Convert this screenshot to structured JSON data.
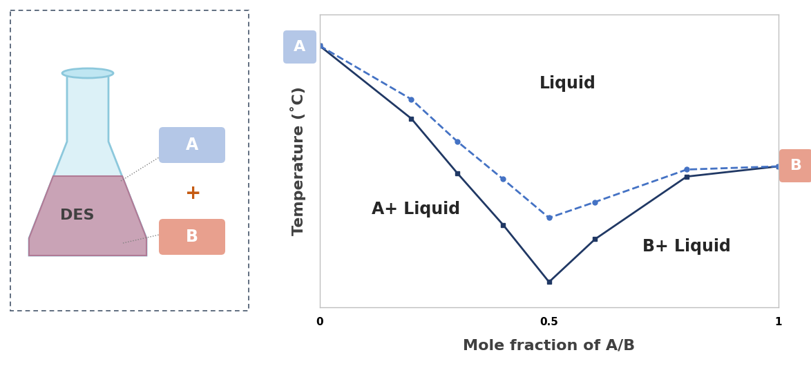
{
  "chart_data": {
    "type": "line",
    "x_label": "Mole fraction of A/B",
    "y_label": "Temperature (˚C)",
    "x": [
      0,
      0.2,
      0.3,
      0.4,
      0.5,
      0.6,
      0.8,
      1
    ],
    "series": [
      {
        "color": "#203864",
        "line_style": "solid",
        "marker": "square",
        "values": [
          89.4,
          64.5,
          45.9,
          28.2,
          8.7,
          23.3,
          44.7,
          48.2
        ]
      },
      {
        "color": "#4472c4",
        "line_style": "dashed",
        "marker": "circle",
        "values": [
          89.4,
          71.1,
          56.7,
          43.8,
          30.6,
          36.0,
          47.1,
          48.2
        ]
      }
    ],
    "xlim": [
      0,
      1
    ],
    "ylim": [
      0,
      100
    ],
    "xticks": [
      0,
      0.5,
      1
    ],
    "yticks": [],
    "tick_labels": "x",
    "annotations": [
      "Liquid",
      "A+ Liquid",
      "B+ Liquid"
    ]
  },
  "diagram": {
    "flask_label": "DES",
    "operator": "+",
    "components": [
      {
        "label": "A",
        "color": "#b4c7e7"
      },
      {
        "label": "B",
        "color": "#e8a08e"
      }
    ]
  }
}
